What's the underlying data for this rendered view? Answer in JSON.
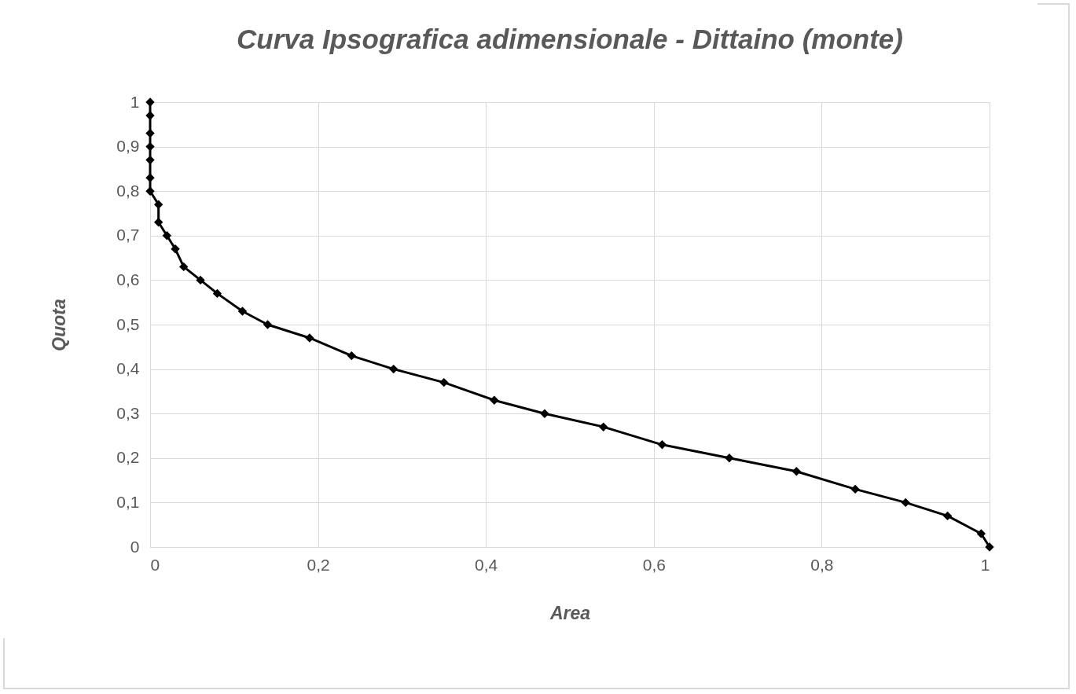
{
  "chart_data": {
    "type": "line",
    "title": "Curva Ipsografica adimensionale  - Dittaino (monte)",
    "xlabel": "Area",
    "ylabel": "Quota",
    "x": [
      0,
      0,
      0,
      0,
      0,
      0,
      0,
      0.01,
      0.01,
      0.02,
      0.03,
      0.04,
      0.06,
      0.08,
      0.11,
      0.14,
      0.19,
      0.24,
      0.29,
      0.35,
      0.41,
      0.47,
      0.54,
      0.61,
      0.69,
      0.77,
      0.84,
      0.9,
      0.95,
      0.99,
      1
    ],
    "series": [
      {
        "color": "#000000",
        "values": [
          1,
          0.97,
          0.93,
          0.9,
          0.87,
          0.83,
          0.8,
          0.77,
          0.73,
          0.7,
          0.67,
          0.63,
          0.6,
          0.57,
          0.53,
          0.5,
          0.47,
          0.43,
          0.4,
          0.37,
          0.33,
          0.3,
          0.27,
          0.23,
          0.2,
          0.17,
          0.13,
          0.1,
          0.07,
          0.03,
          0
        ]
      }
    ],
    "xlim": [
      0,
      1
    ],
    "ylim": [
      0,
      1
    ],
    "xticks": [
      0,
      {
        "value": 0.2,
        "label": "0,2"
      },
      {
        "value": 0.4,
        "label": "0,4"
      },
      {
        "value": 0.6,
        "label": "0,6"
      },
      {
        "value": 0.8,
        "label": "0,8"
      },
      1
    ],
    "yticks": [
      0,
      {
        "value": 0.1,
        "label": "0,1"
      },
      {
        "value": 0.2,
        "label": "0,2"
      },
      {
        "value": 0.3,
        "label": "0,3"
      },
      {
        "value": 0.4,
        "label": "0,4"
      },
      {
        "value": 0.5,
        "label": "0,5"
      },
      {
        "value": 0.6,
        "label": "0,6"
      },
      {
        "value": 0.7,
        "label": "0,7"
      },
      {
        "value": 0.8,
        "label": "0,8"
      },
      {
        "value": 0.9,
        "label": "0,9"
      },
      1
    ],
    "grid": true,
    "marker": "diamond",
    "line_style": "solid"
  }
}
